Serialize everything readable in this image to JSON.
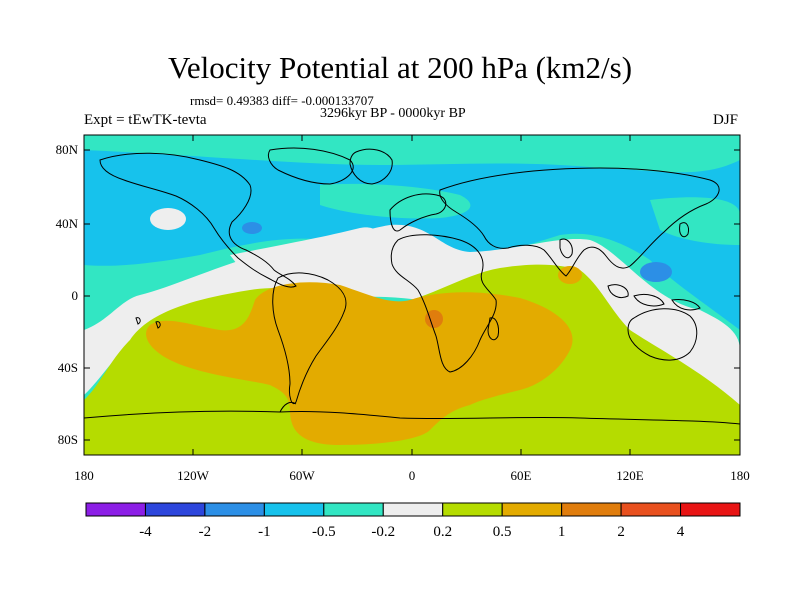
{
  "title": "Velocity Potential at 200 hPa (km2/s)",
  "stats": "rmsd= 0.49383 diff= -0.000133707",
  "period": "3296kyr BP - 0000kyr BP",
  "experiment": "Expt = tEwTK-tevta",
  "season": "DJF",
  "map": {
    "projection": "cylindrical equidistant",
    "lon_range": [
      -180,
      180
    ],
    "lat_range": [
      -90,
      90
    ],
    "x_tick_labels": [
      "180",
      "120W",
      "60W",
      "0",
      "60E",
      "120E",
      "180"
    ],
    "y_tick_labels": [
      "80N",
      "40N",
      "0",
      "40S",
      "80S"
    ],
    "coastlines": true
  },
  "colorbar": {
    "labels": [
      "-4",
      "-2",
      "-1",
      "-0.5",
      "-0.2",
      "0.2",
      "0.5",
      "1",
      "2",
      "4"
    ],
    "colors": [
      "#8c1ee6",
      "#2d46dc",
      "#2c8fe6",
      "#17c2ec",
      "#32e6c3",
      "#eeeeee",
      "#b5dc00",
      "#e3ab00",
      "#e07d0d",
      "#e8501e",
      "#e81414"
    ]
  }
}
